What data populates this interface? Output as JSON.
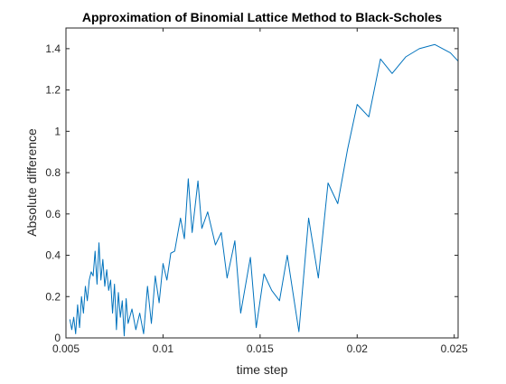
{
  "chart_data": {
    "type": "line",
    "title": "Approximation of Binomial Lattice Method to Black-Scholes",
    "xlabel": "time step",
    "ylabel": "Absolute difference",
    "xlim": [
      0.005,
      0.0252
    ],
    "ylim": [
      0,
      1.5
    ],
    "xticks": [
      0.005,
      0.01,
      0.015,
      0.02,
      0.025
    ],
    "xtick_labels": [
      "0.005",
      "0.01",
      "0.015",
      "0.02",
      "0.025"
    ],
    "yticks": [
      0,
      0.2,
      0.4,
      0.6,
      0.8,
      1,
      1.2,
      1.4
    ],
    "ytick_labels": [
      "0",
      "0.2",
      "0.4",
      "0.6",
      "0.8",
      "1",
      "1.2",
      "1.4"
    ],
    "grid": false,
    "line_color": "#0072BD",
    "series": [
      {
        "x": [
          0.0052,
          0.0053,
          0.0054,
          0.0055,
          0.0056,
          0.0057,
          0.0058,
          0.0059,
          0.006,
          0.0061,
          0.0062,
          0.0063,
          0.0064,
          0.0065,
          0.0066,
          0.0067,
          0.0068,
          0.0069,
          0.007,
          0.0071,
          0.0072,
          0.0073,
          0.0074,
          0.0075,
          0.0076,
          0.0077,
          0.0078,
          0.0079,
          0.008,
          0.0081,
          0.0082,
          0.0084,
          0.0086,
          0.0088,
          0.009,
          0.0092,
          0.0094,
          0.0096,
          0.0098,
          0.01,
          0.0102,
          0.0104,
          0.0106,
          0.0109,
          0.0111,
          0.0113,
          0.0115,
          0.0118,
          0.012,
          0.0123,
          0.0127,
          0.013,
          0.0133,
          0.0137,
          0.014,
          0.0145,
          0.0148,
          0.0152,
          0.0156,
          0.016,
          0.0164,
          0.017,
          0.0175,
          0.018,
          0.0185,
          0.019,
          0.0195,
          0.02,
          0.0206,
          0.0212,
          0.0218,
          0.0225,
          0.0232,
          0.024,
          0.0248,
          0.0252
        ],
        "y": [
          0.09,
          0.04,
          0.1,
          0.02,
          0.16,
          0.05,
          0.2,
          0.12,
          0.25,
          0.18,
          0.28,
          0.32,
          0.3,
          0.42,
          0.26,
          0.46,
          0.28,
          0.38,
          0.25,
          0.33,
          0.23,
          0.28,
          0.12,
          0.26,
          0.04,
          0.22,
          0.1,
          0.18,
          0.01,
          0.19,
          0.07,
          0.14,
          0.04,
          0.12,
          0.02,
          0.25,
          0.07,
          0.3,
          0.17,
          0.36,
          0.28,
          0.41,
          0.42,
          0.58,
          0.48,
          0.77,
          0.51,
          0.76,
          0.53,
          0.61,
          0.45,
          0.51,
          0.29,
          0.47,
          0.12,
          0.39,
          0.05,
          0.31,
          0.23,
          0.18,
          0.4,
          0.03,
          0.58,
          0.29,
          0.75,
          0.65,
          0.91,
          1.13,
          1.07,
          1.35,
          1.28,
          1.36,
          1.4,
          1.42,
          1.38,
          1.34
        ]
      }
    ]
  }
}
